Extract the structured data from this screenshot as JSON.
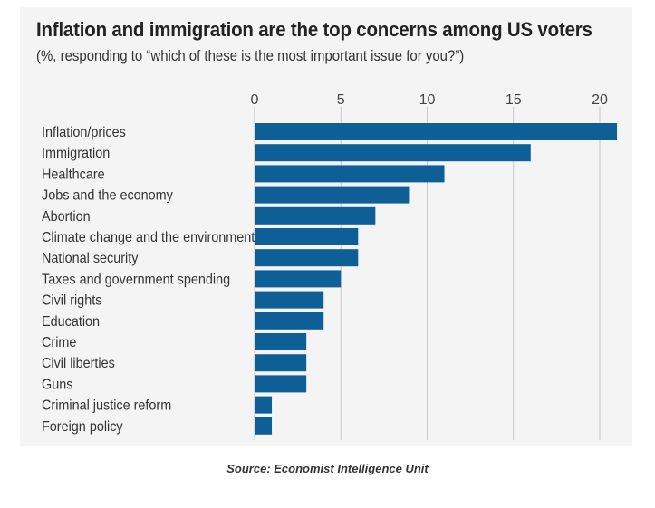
{
  "title": "Inflation and immigration are the top concerns among US voters",
  "subtitle": "(%, responding to “which of these is the most important issue for you?”)",
  "source": "Source: Economist Intelligence Unit",
  "colors": {
    "bar": "#0e5f96",
    "background": "#f4f4f4",
    "grid": "#c9c9c9"
  },
  "chart_data": {
    "type": "bar",
    "orientation": "horizontal",
    "categories": [
      "Inflation/prices",
      "Immigration",
      "Healthcare",
      "Jobs and the economy",
      "Abortion",
      "Climate change and the environment",
      "National security",
      "Taxes and government spending",
      "Civil rights",
      "Education",
      "Crime",
      "Civil liberties",
      "Guns",
      "Criminal justice reform",
      "Foreign policy"
    ],
    "values": [
      21,
      16,
      11,
      9,
      7,
      6,
      6,
      5,
      4,
      4,
      3,
      3,
      3,
      1,
      1
    ],
    "xlim": [
      0,
      21
    ],
    "xticks": [
      0,
      5,
      10,
      15,
      20
    ],
    "xaxis_position": "top",
    "grid": true,
    "legend": "none"
  }
}
